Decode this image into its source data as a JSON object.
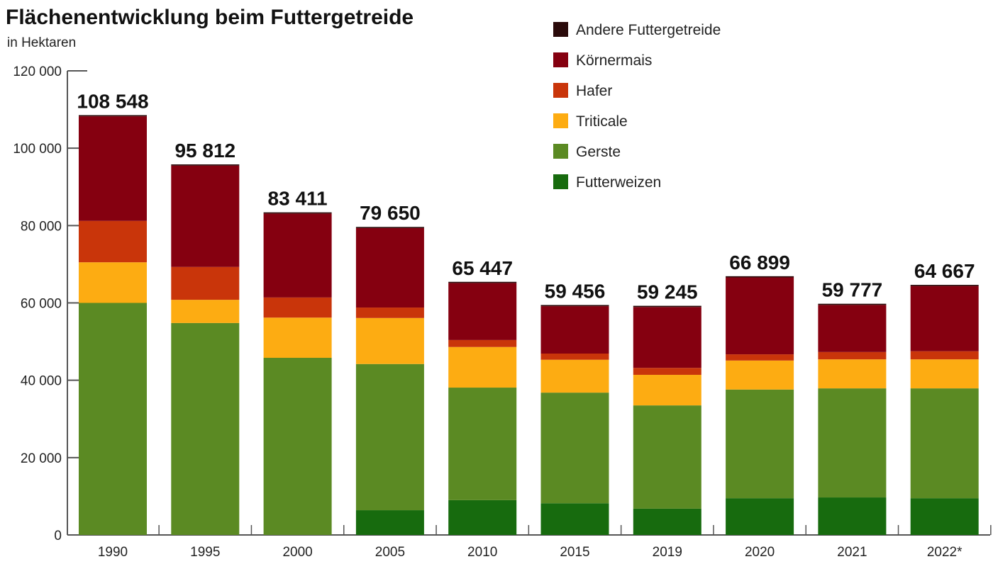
{
  "chart_data": {
    "type": "bar",
    "stacked": true,
    "title": "Flächenentwicklung beim Futtergetreide",
    "subtitle": "in Hektaren",
    "xlabel": "",
    "ylabel": "",
    "ylim": [
      0,
      120000
    ],
    "yticks": [
      0,
      20000,
      40000,
      60000,
      80000,
      100000,
      120000
    ],
    "ytick_labels": [
      "0",
      "20 000",
      "40 000",
      "60 000",
      "80 000",
      "100 000",
      "120 000"
    ],
    "grid": false,
    "legend_position": "top-right",
    "categories": [
      "1990",
      "1995",
      "2000",
      "2005",
      "2010",
      "2015",
      "2019",
      "2020",
      "2021",
      "2022*"
    ],
    "totals": [
      108548,
      95812,
      83411,
      79650,
      65447,
      59456,
      59245,
      66899,
      59777,
      64667
    ],
    "total_labels": [
      "108 548",
      "95 812",
      "83 411",
      "79 650",
      "65 447",
      "59 456",
      "59 245",
      "66 899",
      "59 777",
      "64 667"
    ],
    "series": [
      {
        "name": "Futterweizen",
        "color": "#176b0e",
        "values": [
          0,
          0,
          0,
          6400,
          9000,
          8200,
          6800,
          9500,
          9700,
          9500
        ]
      },
      {
        "name": "Gerste",
        "color": "#5b8a23",
        "values": [
          60000,
          54800,
          45800,
          37800,
          29100,
          28600,
          26700,
          28100,
          28200,
          28400
        ]
      },
      {
        "name": "Triticale",
        "color": "#fdac12",
        "values": [
          10500,
          6000,
          10400,
          11900,
          10500,
          8500,
          7900,
          7500,
          7500,
          7500
        ]
      },
      {
        "name": "Hafer",
        "color": "#c9350a",
        "values": [
          10700,
          8500,
          5200,
          2700,
          1800,
          1600,
          1800,
          1600,
          1900,
          2100
        ]
      },
      {
        "name": "Körnermais",
        "color": "#850010",
        "values": [
          27048,
          26212,
          21711,
          20550,
          14747,
          12256,
          15745,
          19899,
          12177,
          16867
        ]
      },
      {
        "name": "Andere Futtergetreide",
        "color": "#2a0a0a",
        "values": [
          300,
          300,
          300,
          300,
          300,
          300,
          300,
          300,
          300,
          300
        ]
      }
    ]
  }
}
